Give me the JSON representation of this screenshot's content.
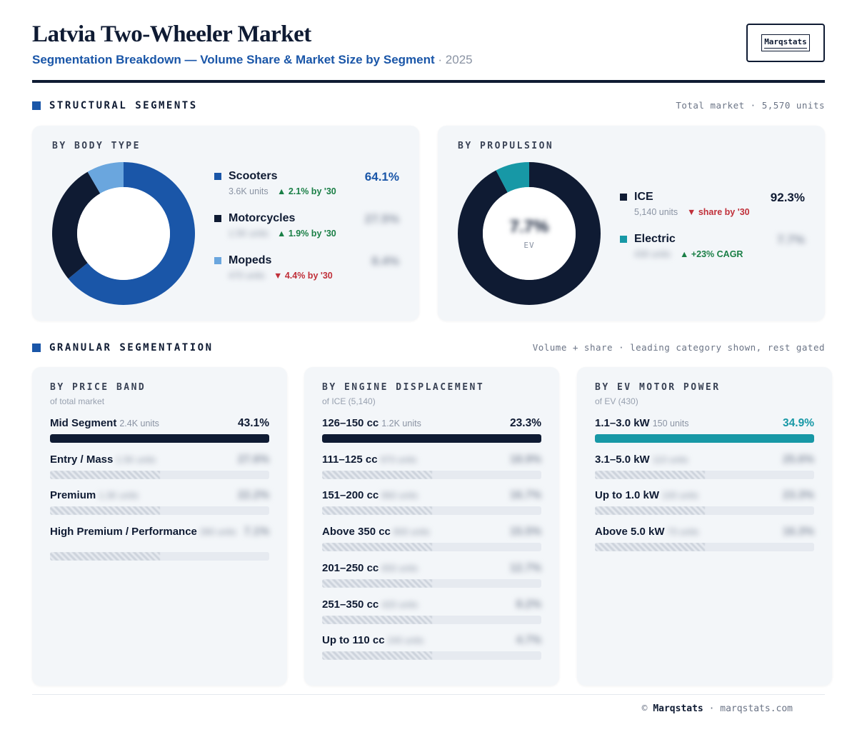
{
  "header": {
    "title": "Latvia Two-Wheeler Market",
    "subtitle": "Segmentation Breakdown — Volume Share & Market Size by Segment",
    "separator": "·",
    "year": "2025",
    "logo_text": "Marqstats"
  },
  "structural": {
    "label": "STRUCTURAL SEGMENTS",
    "note": "Total market · 5,570 units"
  },
  "granular": {
    "label": "GRANULAR SEGMENTATION",
    "note": "Volume + share · leading category shown, rest gated"
  },
  "colors": {
    "navy": "#0f1b33",
    "blue": "#1a56a8",
    "light_blue": "#6aa6de",
    "teal": "#1798a6",
    "up": "#1a7f46",
    "down": "#c0303a"
  },
  "footer": {
    "copyright": "©",
    "brand": "Marqstats",
    "separator": "·",
    "site": "marqstats.com"
  },
  "chart_data": [
    {
      "type": "pie",
      "title": "BY BODY TYPE",
      "center_label": "",
      "slices": [
        {
          "name": "Scooters",
          "value": 64.1,
          "pct_text": "64.1%",
          "units": "3.6K units",
          "trend": "▲ 2.1% by '30",
          "trend_dir": "up",
          "color": "#1a56a8",
          "gated": false
        },
        {
          "name": "Motorcycles",
          "value": 27.5,
          "pct_text": "27.5%",
          "units": "1.5K units",
          "trend": "▲ 1.9% by '30",
          "trend_dir": "up",
          "color": "#0f1b33",
          "gated": true
        },
        {
          "name": "Mopeds",
          "value": 8.4,
          "pct_text": "8.4%",
          "units": "470 units",
          "trend": "▼ 4.4% by '30",
          "trend_dir": "down",
          "color": "#6aa6de",
          "gated": true
        }
      ]
    },
    {
      "type": "pie",
      "title": "BY PROPULSION",
      "center_value": "7.7%",
      "center_label": "EV",
      "slices": [
        {
          "name": "ICE",
          "value": 92.3,
          "pct_text": "92.3%",
          "units": "5,140 units",
          "trend": "▼ share by '30",
          "trend_dir": "down",
          "color": "#0f1b33",
          "gated": false
        },
        {
          "name": "Electric",
          "value": 7.7,
          "pct_text": "7.7%",
          "units": "430 units",
          "trend": "▲ +23% CAGR",
          "trend_dir": "up",
          "color": "#1798a6",
          "gated": true
        }
      ]
    },
    {
      "type": "bar",
      "title": "BY PRICE BAND",
      "subtitle": "of total market",
      "accent": "#0f1b33",
      "items": [
        {
          "name": "Mid Segment",
          "units": "2.4K units",
          "pct_text": "43.1%",
          "value": 43.1,
          "gated": false
        },
        {
          "name": "Entry / Mass",
          "units": "1.5K units",
          "pct_text": "27.6%",
          "gated": true
        },
        {
          "name": "Premium",
          "units": "1.3K units",
          "pct_text": "22.2%",
          "gated": true
        },
        {
          "name": "High Premium / Performance",
          "units": "390 units",
          "pct_text": "7.1%",
          "gated": true
        }
      ]
    },
    {
      "type": "bar",
      "title": "BY ENGINE DISPLACEMENT",
      "subtitle": "of ICE (5,140)",
      "accent": "#0f1b33",
      "items": [
        {
          "name": "126–150 cc",
          "units": "1.2K units",
          "pct_text": "23.3%",
          "value": 23.3,
          "gated": false
        },
        {
          "name": "111–125 cc",
          "units": "970 units",
          "pct_text": "18.9%",
          "gated": true
        },
        {
          "name": "151–200 cc",
          "units": "860 units",
          "pct_text": "16.7%",
          "gated": true
        },
        {
          "name": "Above 350 cc",
          "units": "800 units",
          "pct_text": "15.5%",
          "gated": true
        },
        {
          "name": "201–250 cc",
          "units": "650 units",
          "pct_text": "12.7%",
          "gated": true
        },
        {
          "name": "251–350 cc",
          "units": "420 units",
          "pct_text": "8.2%",
          "gated": true
        },
        {
          "name": "Up to 110 cc",
          "units": "240 units",
          "pct_text": "4.7%",
          "gated": true
        }
      ]
    },
    {
      "type": "bar",
      "title": "BY EV MOTOR POWER",
      "subtitle": "of EV (430)",
      "accent": "#1798a6",
      "items": [
        {
          "name": "1.1–3.0 kW",
          "units": "150 units",
          "pct_text": "34.9%",
          "value": 34.9,
          "gated": false
        },
        {
          "name": "3.1–5.0 kW",
          "units": "110 units",
          "pct_text": "25.6%",
          "gated": true
        },
        {
          "name": "Up to 1.0 kW",
          "units": "100 units",
          "pct_text": "23.3%",
          "gated": true
        },
        {
          "name": "Above 5.0 kW",
          "units": "70 units",
          "pct_text": "16.3%",
          "gated": true
        }
      ]
    }
  ]
}
